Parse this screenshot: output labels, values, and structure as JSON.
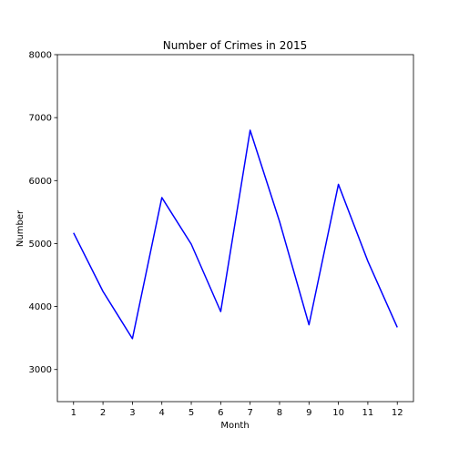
{
  "chart_data": {
    "type": "line",
    "title": "Number of Crimes in 2015",
    "xlabel": "Month",
    "ylabel": "Number",
    "x": [
      1,
      2,
      3,
      4,
      5,
      6,
      7,
      8,
      9,
      10,
      11,
      12
    ],
    "xticks": [
      "1",
      "2",
      "3",
      "4",
      "5",
      "6",
      "7",
      "8",
      "9",
      "10",
      "11",
      "12"
    ],
    "yticks": [
      3000,
      4000,
      5000,
      6000,
      7000,
      8000
    ],
    "xlim": [
      0.45,
      12.55
    ],
    "ylim": [
      2490,
      8000
    ],
    "series": [
      {
        "values": [
          5170,
          4240,
          3490,
          5730,
          4990,
          3920,
          6800,
          5350,
          3710,
          5940,
          4720,
          3670
        ],
        "color": "#0000ff"
      }
    ],
    "grid": false,
    "legend": "none"
  }
}
